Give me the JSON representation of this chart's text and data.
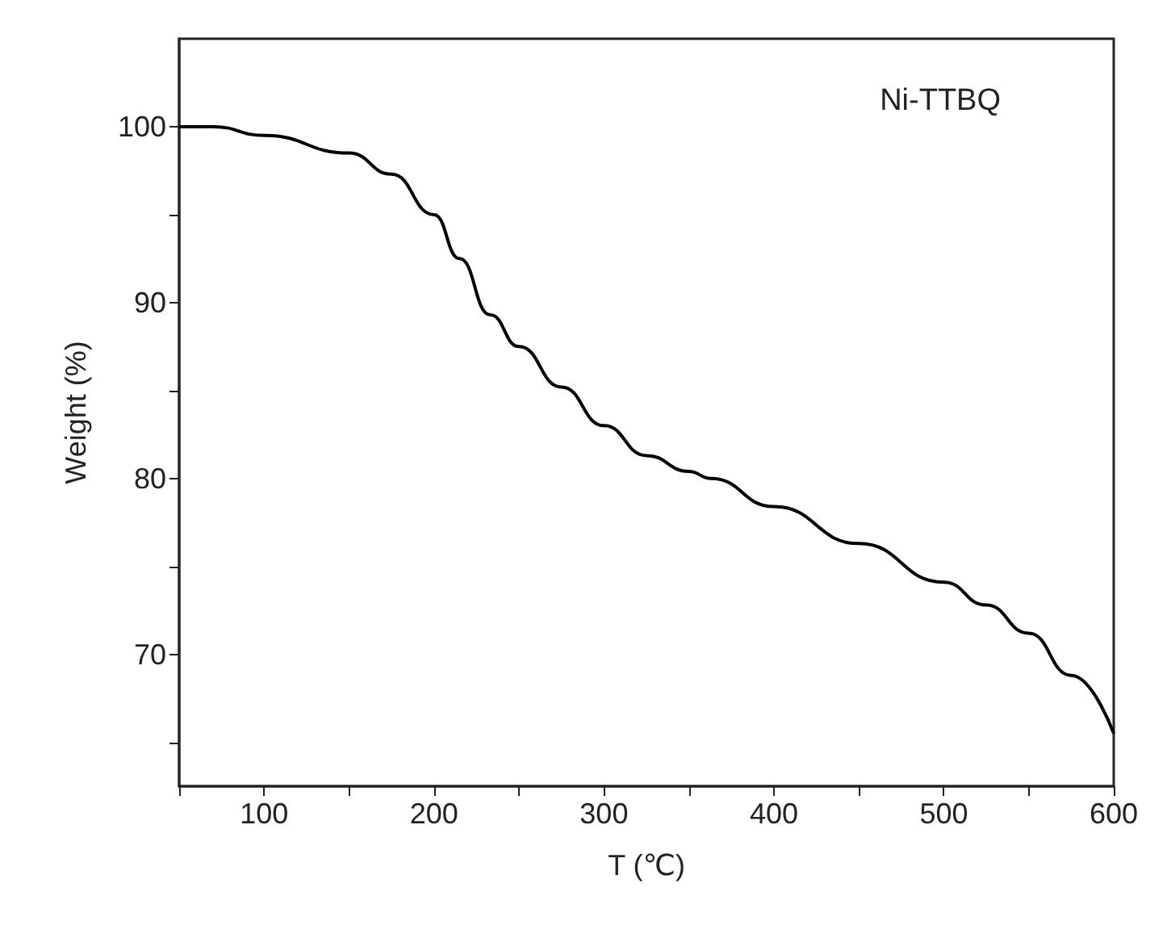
{
  "chart_data": {
    "type": "line",
    "xlabel": "T (℃)",
    "ylabel": "Weight (%)",
    "annotations": [
      "Ni-TTBQ"
    ],
    "x": [
      50,
      70,
      100,
      150,
      175,
      200,
      215,
      233,
      250,
      275,
      300,
      325,
      350,
      363,
      400,
      450,
      500,
      525,
      550,
      575,
      600
    ],
    "series": [
      {
        "color": "#000000",
        "values": [
          100,
          100,
          99.5,
          98.5,
          97.3,
          95,
          92.5,
          89.3,
          87.5,
          85.2,
          83,
          81.3,
          80.4,
          80,
          78.4,
          76.3,
          74.1,
          72.8,
          71.2,
          68.8,
          65.5
        ]
      }
    ],
    "xlim": [
      50,
      600
    ],
    "xticks": [
      {
        "value": 50,
        "label": null
      },
      100,
      {
        "value": 150,
        "label": null
      },
      200,
      {
        "value": 250,
        "label": null
      },
      300,
      {
        "value": 350,
        "label": null
      },
      400,
      {
        "value": 450,
        "label": null
      },
      500,
      {
        "value": 550,
        "label": null
      },
      600
    ],
    "ylim": [
      62.5,
      105
    ],
    "yticks": [
      {
        "value": 65,
        "label": null
      },
      70,
      {
        "value": 75,
        "label": null
      },
      80,
      {
        "value": 85,
        "label": null
      },
      90,
      {
        "value": 95,
        "label": null
      },
      100
    ],
    "grid": false,
    "marker": "none",
    "line_style": "solid"
  }
}
